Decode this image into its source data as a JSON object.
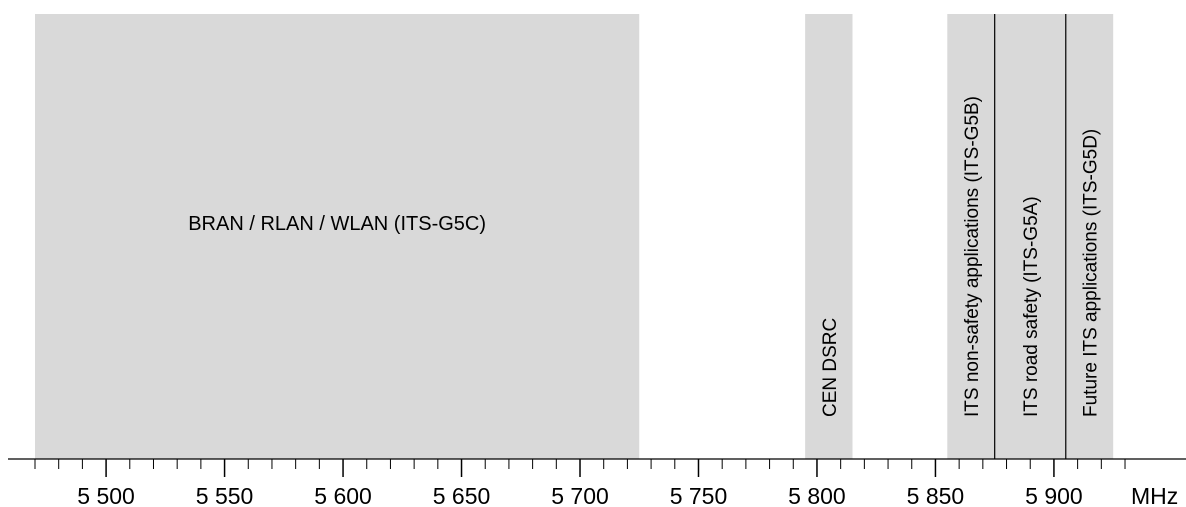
{
  "bands": [
    {
      "id": "bran",
      "start": 5470,
      "end": 5725,
      "label": "BRAN / RLAN / WLAN (ITS-G5C)",
      "orientation": "horizontal"
    },
    {
      "id": "cen-dsrc",
      "start": 5795,
      "end": 5815,
      "label": "CEN DSRC",
      "orientation": "vertical"
    },
    {
      "id": "its-g5b",
      "start": 5855,
      "end": 5875,
      "label": "ITS non-safety applications (ITS-G5B)",
      "orientation": "vertical"
    },
    {
      "id": "its-g5a",
      "start": 5875,
      "end": 5905,
      "label": "ITS road safety (ITS-G5A)",
      "orientation": "vertical"
    },
    {
      "id": "its-g5d",
      "start": 5905,
      "end": 5925,
      "label": "Future ITS applications (ITS-G5D)",
      "orientation": "vertical"
    }
  ],
  "axis": {
    "min": 5470,
    "max": 5930,
    "minor_step": 10,
    "major_step": 50,
    "major_ticks": [
      "5 500",
      "5 550",
      "5 600",
      "5 650",
      "5 700",
      "5 750",
      "5 800",
      "5 850",
      "5 900"
    ],
    "major_values": [
      5500,
      5550,
      5600,
      5650,
      5700,
      5750,
      5800,
      5850,
      5900
    ],
    "unit": "MHz"
  },
  "colors": {
    "band_fill": "#d9d9d9",
    "divider": "#000000",
    "axis": "#000000"
  }
}
